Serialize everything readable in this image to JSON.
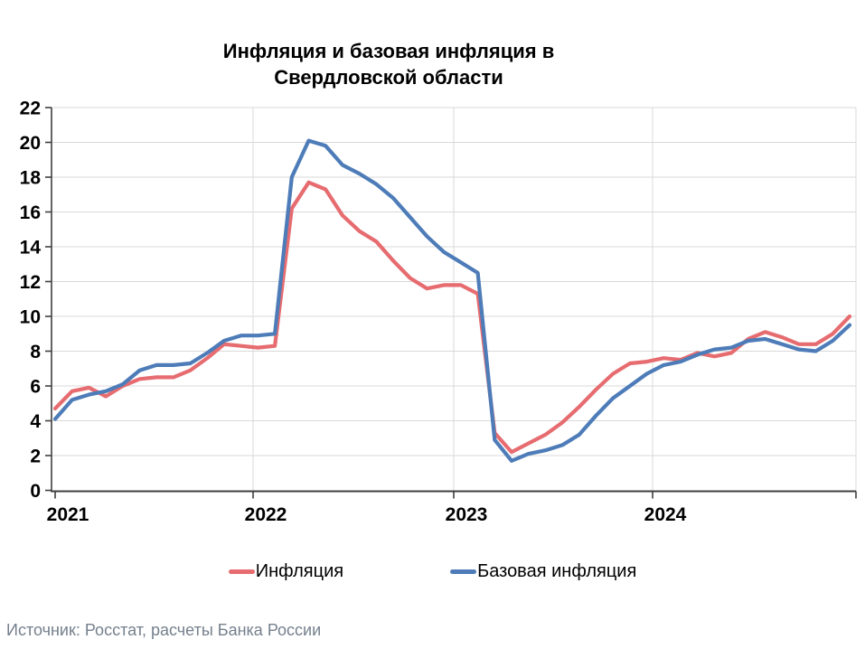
{
  "title": {
    "full": "Инфляция и базовая инфляция в Свердловской области",
    "line1": "Инфляция и базовая инфляция в",
    "line2": "Свердловской области"
  },
  "source": "Источник: Росстат, расчеты Банка России",
  "legend": [
    {
      "label": "Инфляция",
      "color": "#e66c70"
    },
    {
      "label": "Базовая инфляция",
      "color": "#4d7cb8"
    }
  ],
  "colors": {
    "grid": "#d9d9d9",
    "axis": "#3f3f3f",
    "tick_label": "#000000",
    "source_text": "#75808d"
  },
  "chart_data": {
    "type": "line",
    "title": "Инфляция и базовая инфляция в Свердловской области",
    "xlabel": "",
    "ylabel": "",
    "x_unit": "month",
    "x_start": "2021-01",
    "x_end": "2024-12",
    "x_tick_labels": [
      "2021",
      "2022",
      "2023",
      "2024"
    ],
    "ylim": [
      0,
      22
    ],
    "y_tick_step": 2,
    "grid": true,
    "legend_position": "bottom",
    "series": [
      {
        "name": "Инфляция",
        "color": "#e66c70",
        "values": [
          4.7,
          5.7,
          5.9,
          5.4,
          6.0,
          6.4,
          6.5,
          6.5,
          6.9,
          7.6,
          8.4,
          8.3,
          8.2,
          8.3,
          16.2,
          17.7,
          17.3,
          15.8,
          14.9,
          14.3,
          13.2,
          12.2,
          11.6,
          11.8,
          11.8,
          11.3,
          3.3,
          2.2,
          2.7,
          3.2,
          3.9,
          4.8,
          5.8,
          6.7,
          7.3,
          7.4,
          7.6,
          7.5,
          7.9,
          7.7,
          7.9,
          8.7,
          9.1,
          8.8,
          8.4,
          8.4,
          9.0,
          10.0
        ]
      },
      {
        "name": "Базовая инфляция",
        "color": "#4d7cb8",
        "values": [
          4.1,
          5.2,
          5.5,
          5.7,
          6.1,
          6.9,
          7.2,
          7.2,
          7.3,
          7.9,
          8.6,
          8.9,
          8.9,
          9.0,
          18.0,
          20.1,
          19.8,
          18.7,
          18.2,
          17.6,
          16.8,
          15.7,
          14.6,
          13.7,
          13.1,
          12.5,
          2.9,
          1.7,
          2.1,
          2.3,
          2.6,
          3.2,
          4.3,
          5.3,
          6.0,
          6.7,
          7.2,
          7.4,
          7.8,
          8.1,
          8.2,
          8.6,
          8.7,
          8.4,
          8.1,
          8.0,
          8.6,
          9.5
        ]
      }
    ]
  }
}
